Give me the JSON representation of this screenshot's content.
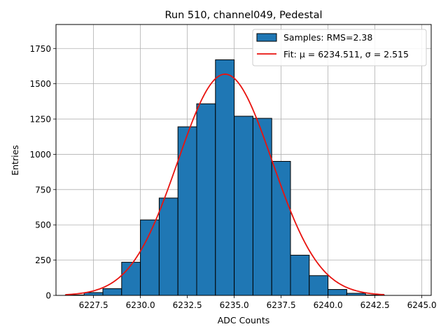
{
  "chart_data": {
    "type": "bar",
    "title": "Run 510, channel049, Pedestal",
    "xlabel": "ADC Counts",
    "ylabel": "Entries",
    "xlim": [
      6225.5,
      6245.5
    ],
    "ylim": [
      0,
      1920
    ],
    "grid": true,
    "legend_position": "top-right",
    "x_ticks": [
      6227.5,
      6230.0,
      6232.5,
      6235.0,
      6237.5,
      6240.0,
      6242.5,
      6245.0
    ],
    "x_tick_labels": [
      "6227.5",
      "6230.0",
      "6232.5",
      "6235.0",
      "6237.5",
      "6240.0",
      "6242.5",
      "6245.0"
    ],
    "y_ticks": [
      0,
      250,
      500,
      750,
      1000,
      1250,
      1500,
      1750
    ],
    "y_tick_labels": [
      "0",
      "250",
      "500",
      "750",
      "1000",
      "1250",
      "1500",
      "1750"
    ],
    "histogram": {
      "name": "Samples: RMS=2.38",
      "color": "#1f77b4",
      "edge_color": "#000000",
      "bin_edges": [
        6226.0,
        6227.0,
        6228.0,
        6229.0,
        6230.0,
        6231.0,
        6232.0,
        6233.0,
        6234.0,
        6235.0,
        6236.0,
        6237.0,
        6238.0,
        6239.0,
        6240.0,
        6241.0,
        6242.0,
        6243.0
      ],
      "counts": [
        3,
        20,
        48,
        235,
        535,
        690,
        1195,
        1358,
        1670,
        1270,
        1255,
        950,
        285,
        140,
        42,
        15,
        3
      ]
    },
    "fit": {
      "name": "Fit: μ = 6234.511, σ = 2.515",
      "color": "#e8130f",
      "mu": 6234.511,
      "sigma": 2.515,
      "amplitude": 1568,
      "x_range": [
        6226.0,
        6243.0
      ]
    }
  }
}
